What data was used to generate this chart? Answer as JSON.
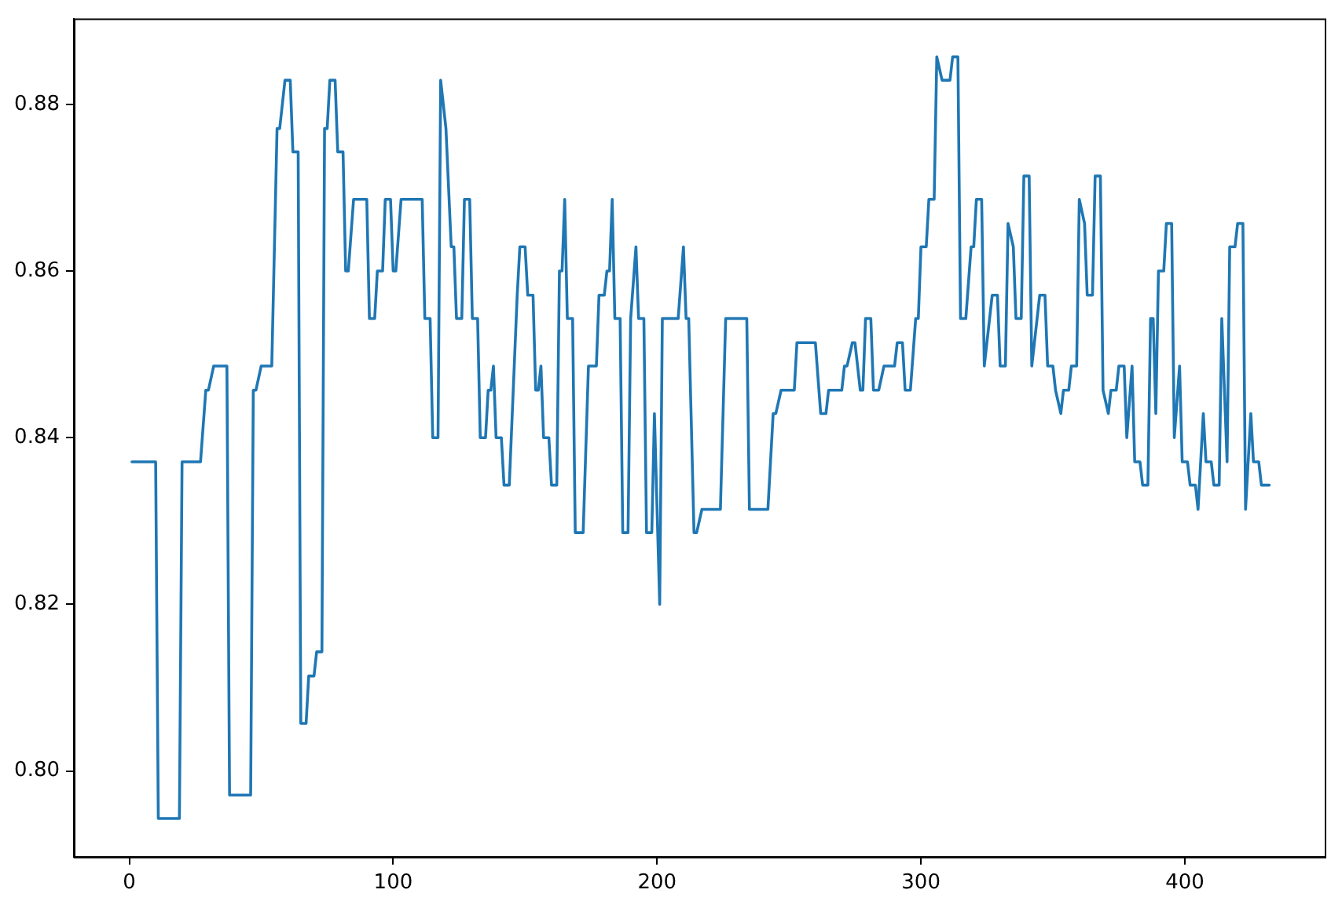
{
  "chart_data": {
    "type": "line",
    "x": [
      1,
      10,
      11,
      19,
      20,
      27,
      29,
      30,
      32,
      37,
      38,
      46,
      47,
      48,
      50,
      54,
      56,
      57,
      59,
      61,
      62,
      64,
      65,
      67,
      68,
      70,
      71,
      73,
      74,
      75,
      76,
      78,
      79,
      81,
      82,
      83,
      85,
      90,
      91,
      93,
      94,
      96,
      97,
      99,
      100,
      101,
      103,
      111,
      112,
      114,
      115,
      117,
      118,
      120,
      122,
      123,
      124,
      126,
      127,
      129,
      130,
      132,
      133,
      135,
      136,
      137,
      138,
      139,
      141,
      142,
      144,
      147,
      148,
      150,
      151,
      153,
      154,
      155,
      156,
      157,
      159,
      160,
      162,
      163,
      164,
      165,
      166,
      168,
      169,
      172,
      174,
      177,
      178,
      180,
      181,
      182,
      183,
      184,
      186,
      187,
      189,
      190,
      192,
      193,
      195,
      196,
      198,
      199,
      201,
      202,
      208,
      210,
      211,
      212,
      214,
      215,
      217,
      224,
      226,
      234,
      235,
      242,
      244,
      245,
      247,
      252,
      253,
      260,
      262,
      264,
      265,
      270,
      271,
      272,
      274,
      275,
      277,
      278,
      279,
      281,
      282,
      284,
      286,
      290,
      291,
      293,
      294,
      296,
      298,
      299,
      300,
      302,
      303,
      305,
      306,
      308,
      311,
      312,
      314,
      315,
      317,
      319,
      320,
      321,
      323,
      324,
      327,
      329,
      330,
      332,
      333,
      335,
      336,
      338,
      339,
      341,
      342,
      345,
      347,
      348,
      350,
      351,
      353,
      354,
      356,
      357,
      359,
      360,
      362,
      363,
      365,
      366,
      368,
      369,
      371,
      372,
      374,
      375,
      377,
      378,
      380,
      381,
      383,
      384,
      386,
      387,
      388,
      389,
      390,
      392,
      393,
      395,
      396,
      398,
      399,
      401,
      402,
      404,
      405,
      407,
      408,
      410,
      411,
      413,
      414,
      416,
      417,
      419,
      420,
      422,
      423,
      425,
      426,
      428,
      429,
      432
    ],
    "series": [
      {
        "color": "#1f77b4",
        "values": [
          0.8371,
          0.8371,
          0.7943,
          0.7943,
          0.8371,
          0.8371,
          0.8457,
          0.8457,
          0.8486,
          0.8486,
          0.7971,
          0.7971,
          0.8457,
          0.8457,
          0.8486,
          0.8486,
          0.8771,
          0.8771,
          0.8829,
          0.8829,
          0.8743,
          0.8743,
          0.8057,
          0.8057,
          0.8114,
          0.8114,
          0.8143,
          0.8143,
          0.8771,
          0.8771,
          0.8829,
          0.8829,
          0.8743,
          0.8743,
          0.86,
          0.86,
          0.8686,
          0.8686,
          0.8543,
          0.8543,
          0.86,
          0.86,
          0.8686,
          0.8686,
          0.86,
          0.86,
          0.8686,
          0.8686,
          0.8543,
          0.8543,
          0.84,
          0.84,
          0.8829,
          0.8771,
          0.8629,
          0.8629,
          0.8543,
          0.8543,
          0.8686,
          0.8686,
          0.8543,
          0.8543,
          0.84,
          0.84,
          0.8457,
          0.8457,
          0.8486,
          0.84,
          0.84,
          0.8343,
          0.8343,
          0.8571,
          0.8629,
          0.8629,
          0.8571,
          0.8571,
          0.8457,
          0.8457,
          0.8486,
          0.84,
          0.84,
          0.8343,
          0.8343,
          0.86,
          0.86,
          0.8686,
          0.8543,
          0.8543,
          0.8286,
          0.8286,
          0.8486,
          0.8486,
          0.8571,
          0.8571,
          0.86,
          0.86,
          0.8686,
          0.8543,
          0.8543,
          0.8286,
          0.8286,
          0.8543,
          0.8629,
          0.8543,
          0.8543,
          0.8286,
          0.8286,
          0.8429,
          0.82,
          0.8543,
          0.8543,
          0.8629,
          0.8543,
          0.8543,
          0.8286,
          0.8286,
          0.8314,
          0.8314,
          0.8543,
          0.8543,
          0.8314,
          0.8314,
          0.8429,
          0.8429,
          0.8457,
          0.8457,
          0.8514,
          0.8514,
          0.8429,
          0.8429,
          0.8457,
          0.8457,
          0.8486,
          0.8486,
          0.8514,
          0.8514,
          0.8457,
          0.8457,
          0.8543,
          0.8543,
          0.8457,
          0.8457,
          0.8486,
          0.8486,
          0.8514,
          0.8514,
          0.8457,
          0.8457,
          0.8543,
          0.8543,
          0.8629,
          0.8629,
          0.8686,
          0.8686,
          0.8857,
          0.8829,
          0.8829,
          0.8857,
          0.8857,
          0.8543,
          0.8543,
          0.8629,
          0.8629,
          0.8686,
          0.8686,
          0.8486,
          0.8571,
          0.8571,
          0.8486,
          0.8486,
          0.8657,
          0.8629,
          0.8543,
          0.8543,
          0.8714,
          0.8714,
          0.8486,
          0.8571,
          0.8571,
          0.8486,
          0.8486,
          0.8457,
          0.8429,
          0.8457,
          0.8457,
          0.8486,
          0.8486,
          0.8686,
          0.8657,
          0.8571,
          0.8571,
          0.8714,
          0.8714,
          0.8457,
          0.8429,
          0.8457,
          0.8457,
          0.8486,
          0.8486,
          0.84,
          0.8486,
          0.8371,
          0.8371,
          0.8343,
          0.8343,
          0.8543,
          0.8543,
          0.8429,
          0.86,
          0.86,
          0.8657,
          0.8657,
          0.84,
          0.8486,
          0.8371,
          0.8371,
          0.8343,
          0.8343,
          0.8314,
          0.8429,
          0.8371,
          0.8371,
          0.8343,
          0.8343,
          0.8543,
          0.8371,
          0.8629,
          0.8629,
          0.8657,
          0.8657,
          0.8314,
          0.8429,
          0.8371,
          0.8371,
          0.8343,
          0.8343
        ]
      }
    ],
    "xlim": [
      -21,
      453
    ],
    "xticks": [
      0,
      100,
      200,
      300,
      400
    ],
    "ylim": [
      0.7897,
      0.8903
    ],
    "yticks": [
      {
        "value": 0.8,
        "label": "0.80"
      },
      {
        "value": 0.82,
        "label": "0.82"
      },
      {
        "value": 0.84,
        "label": "0.84"
      },
      {
        "value": 0.86,
        "label": "0.86"
      },
      {
        "value": 0.88,
        "label": "0.88"
      }
    ],
    "grid": false,
    "legend": false,
    "marker": "none",
    "line_style": "solid"
  }
}
